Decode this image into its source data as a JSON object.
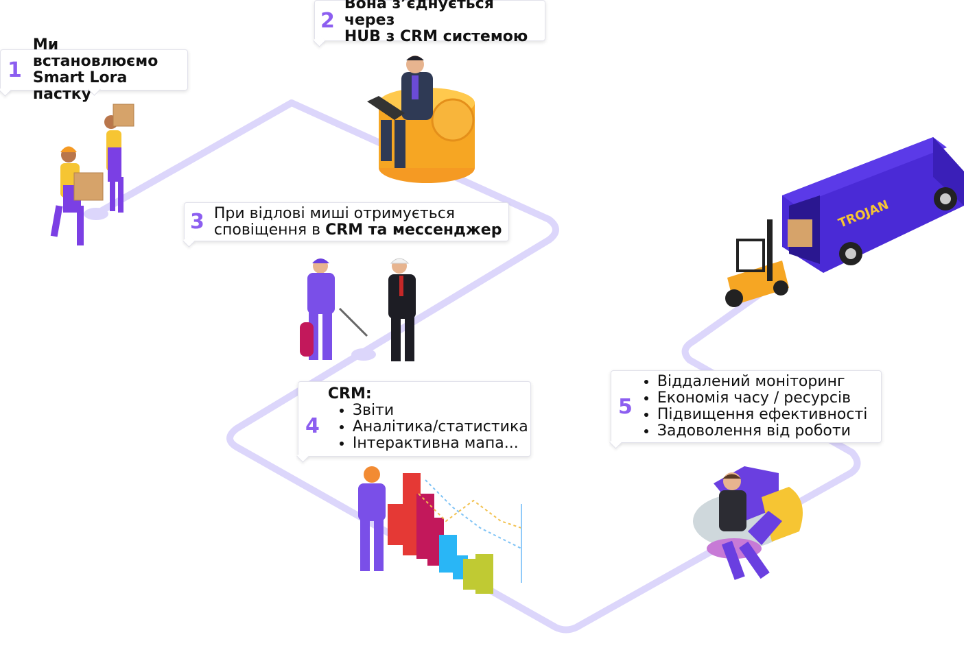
{
  "steps": [
    {
      "num": "1",
      "line1": "Ми встановлюємо",
      "line2": "Smart Lora пастку"
    },
    {
      "num": "2",
      "line1": "Вона з’єднується через",
      "line2": "HUB з CRM системою"
    },
    {
      "num": "3",
      "line1": "При відлові миші отримується",
      "line2_pre": "сповіщення в ",
      "line2_bold": "CRM та мессенджер"
    },
    {
      "num": "4",
      "title": "CRM:",
      "items": [
        "Звіти",
        "Аналітика/статистика",
        "Інтерактивна мапа..."
      ]
    },
    {
      "num": "5",
      "items": [
        "Віддалений моніторинг",
        "Економія часу / ресурсів",
        "Підвищення ефективності",
        "Задоволення від роботи"
      ]
    }
  ],
  "truck_brand": "TROJAN",
  "colors": {
    "path": "#dcd6fb",
    "accent": "#8c5ef0",
    "purple": "#5a35d6",
    "orange": "#f6a623"
  }
}
